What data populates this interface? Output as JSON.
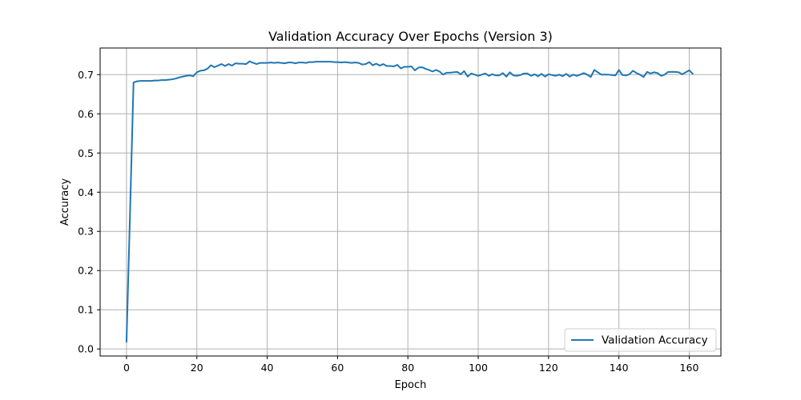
{
  "chart_data": {
    "type": "line",
    "title": "Validation Accuracy Over Epochs (Version 3)",
    "xlabel": "Epoch",
    "ylabel": "Accuracy",
    "xlim": [
      -7.5,
      169
    ],
    "ylim": [
      -0.018,
      0.768
    ],
    "xticks": [
      0,
      20,
      40,
      60,
      80,
      100,
      120,
      140,
      160
    ],
    "yticks": [
      0.0,
      0.1,
      0.2,
      0.3,
      0.4,
      0.5,
      0.6,
      0.7
    ],
    "ytick_labels": [
      "0.0",
      "0.1",
      "0.2",
      "0.3",
      "0.4",
      "0.5",
      "0.6",
      "0.7"
    ],
    "grid": true,
    "legend_position": "bottom-right",
    "colors": {
      "line": "#1f77b4"
    },
    "series": [
      {
        "name": "Validation Accuracy",
        "x": [
          0,
          1,
          2,
          3,
          4,
          5,
          6,
          7,
          8,
          9,
          10,
          11,
          12,
          13,
          14,
          15,
          16,
          17,
          18,
          19,
          20,
          21,
          22,
          23,
          24,
          25,
          26,
          27,
          28,
          29,
          30,
          31,
          32,
          33,
          34,
          35,
          36,
          37,
          38,
          39,
          40,
          41,
          42,
          43,
          44,
          45,
          46,
          47,
          48,
          49,
          50,
          51,
          52,
          53,
          54,
          55,
          56,
          57,
          58,
          59,
          60,
          61,
          62,
          63,
          64,
          65,
          66,
          67,
          68,
          69,
          70,
          71,
          72,
          73,
          74,
          75,
          76,
          77,
          78,
          79,
          80,
          81,
          82,
          83,
          84,
          85,
          86,
          87,
          88,
          89,
          90,
          91,
          92,
          93,
          94,
          95,
          96,
          97,
          98,
          99,
          100,
          101,
          102,
          103,
          104,
          105,
          106,
          107,
          108,
          109,
          110,
          111,
          112,
          113,
          114,
          115,
          116,
          117,
          118,
          119,
          120,
          121,
          122,
          123,
          124,
          125,
          126,
          127,
          128,
          129,
          130,
          131,
          132,
          133,
          134,
          135,
          136,
          137,
          138,
          139,
          140,
          141,
          142,
          143,
          144,
          145,
          146,
          147,
          148,
          149,
          150,
          151,
          152,
          153,
          154,
          155,
          156,
          157,
          158,
          159,
          160,
          161
        ],
        "y": [
          0.018,
          0.345,
          0.68,
          0.683,
          0.684,
          0.684,
          0.684,
          0.684,
          0.685,
          0.685,
          0.686,
          0.686,
          0.687,
          0.688,
          0.69,
          0.693,
          0.695,
          0.697,
          0.698,
          0.696,
          0.706,
          0.71,
          0.711,
          0.715,
          0.724,
          0.719,
          0.723,
          0.727,
          0.722,
          0.727,
          0.723,
          0.729,
          0.728,
          0.728,
          0.727,
          0.734,
          0.73,
          0.727,
          0.73,
          0.73,
          0.73,
          0.731,
          0.73,
          0.731,
          0.73,
          0.729,
          0.731,
          0.731,
          0.729,
          0.731,
          0.731,
          0.73,
          0.732,
          0.732,
          0.733,
          0.733,
          0.733,
          0.733,
          0.733,
          0.732,
          0.732,
          0.731,
          0.732,
          0.731,
          0.73,
          0.731,
          0.73,
          0.726,
          0.727,
          0.732,
          0.724,
          0.728,
          0.723,
          0.727,
          0.722,
          0.722,
          0.721,
          0.725,
          0.716,
          0.72,
          0.72,
          0.721,
          0.711,
          0.718,
          0.719,
          0.715,
          0.712,
          0.708,
          0.712,
          0.708,
          0.7,
          0.705,
          0.705,
          0.706,
          0.707,
          0.701,
          0.709,
          0.695,
          0.703,
          0.7,
          0.697,
          0.7,
          0.703,
          0.697,
          0.701,
          0.698,
          0.698,
          0.704,
          0.695,
          0.706,
          0.698,
          0.697,
          0.699,
          0.703,
          0.703,
          0.697,
          0.701,
          0.696,
          0.702,
          0.695,
          0.701,
          0.699,
          0.697,
          0.7,
          0.696,
          0.702,
          0.695,
          0.7,
          0.697,
          0.7,
          0.704,
          0.7,
          0.694,
          0.712,
          0.706,
          0.7,
          0.7,
          0.7,
          0.699,
          0.698,
          0.712,
          0.699,
          0.698,
          0.701,
          0.71,
          0.704,
          0.7,
          0.694,
          0.707,
          0.703,
          0.706,
          0.704,
          0.697,
          0.7,
          0.707,
          0.707,
          0.707,
          0.706,
          0.701,
          0.706,
          0.711,
          0.702
        ]
      }
    ]
  }
}
